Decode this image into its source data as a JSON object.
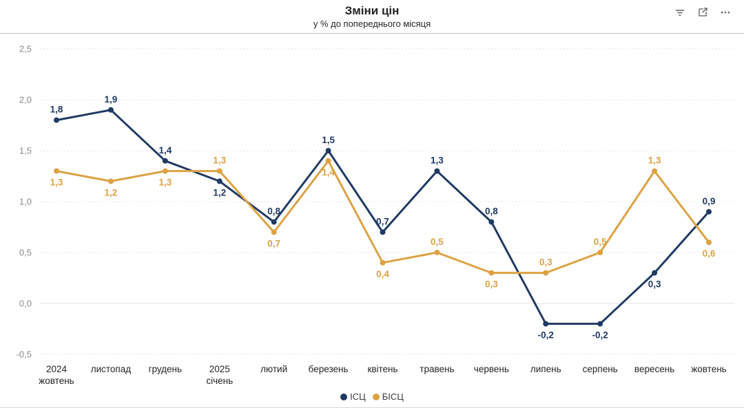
{
  "header": {
    "title": "Зміни цін",
    "subtitle": "у % до попереднього місяця",
    "icons": [
      "filter-icon",
      "focus-mode-icon",
      "more-options-icon"
    ]
  },
  "chart_data": {
    "type": "line",
    "title": "Зміни цін",
    "subtitle": "у % до попереднього місяця",
    "categories": [
      "2024 жовтень",
      "листопад",
      "грудень",
      "2025 січень",
      "лютий",
      "березень",
      "квітень",
      "травень",
      "червень",
      "липень",
      "серпень",
      "вересень",
      "жовтень"
    ],
    "category_lines": [
      [
        "2024",
        "жовтень"
      ],
      [
        "листопад"
      ],
      [
        "грудень"
      ],
      [
        "2025",
        "січень"
      ],
      [
        "лютий"
      ],
      [
        "березень"
      ],
      [
        "квітень"
      ],
      [
        "травень"
      ],
      [
        "червень"
      ],
      [
        "липень"
      ],
      [
        "серпень"
      ],
      [
        "вересень"
      ],
      [
        "жовтень"
      ]
    ],
    "series": [
      {
        "name": "ІСЦ",
        "color": "#1f3a63",
        "values": [
          1.8,
          1.9,
          1.4,
          1.2,
          0.8,
          1.5,
          0.7,
          1.3,
          0.8,
          -0.2,
          -0.2,
          0.3,
          0.9
        ],
        "labels": [
          "1,8",
          "1,9",
          "1,4",
          "1,2",
          "0,8",
          "1,5",
          "0,7",
          "1,3",
          "0,8",
          "-0,2",
          "-0,2",
          "0,3",
          "0,9"
        ],
        "label_positions": [
          "above",
          "above",
          "above",
          "below",
          "above",
          "above",
          "above",
          "above",
          "above",
          "below",
          "below",
          "below",
          "above"
        ]
      },
      {
        "name": "БІСЦ",
        "color": "#dda243",
        "values": [
          1.3,
          1.2,
          1.3,
          1.3,
          0.7,
          1.4,
          0.4,
          0.5,
          0.3,
          0.3,
          0.5,
          1.3,
          0.6
        ],
        "labels": [
          "1,3",
          "1,2",
          "1,3",
          "1,3",
          "0,7",
          "1,4",
          "0,4",
          "0,5",
          "0,3",
          "0,3",
          "0,5",
          "1,3",
          "0,6"
        ],
        "label_positions": [
          "below",
          "below",
          "below",
          "above",
          "below",
          "below",
          "below",
          "above",
          "below",
          "above",
          "above",
          "above",
          "below"
        ]
      }
    ],
    "y_axis": {
      "min": -0.5,
      "max": 2.5,
      "step": 0.5,
      "tick_labels": [
        "2,5",
        "2,0",
        "1,5",
        "1,0",
        "0,5",
        "0,0",
        "-0,5"
      ]
    },
    "grid": true,
    "legend_position": "bottom",
    "colors": {
      "grid": "#e3e3e3",
      "y_tick_text": "#8a8a8a",
      "x_tick_text": "#252423"
    }
  }
}
